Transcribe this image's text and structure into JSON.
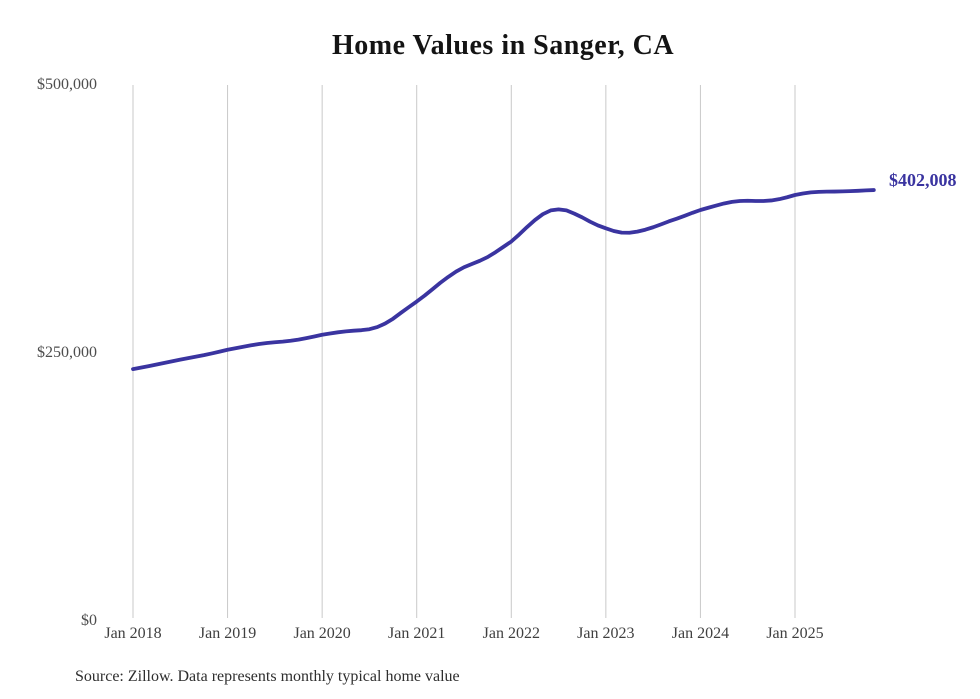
{
  "title": "Home Values in Sanger, CA",
  "source_note": "Source: Zillow. Data represents monthly typical home value",
  "colors": {
    "line": "#3a34a0",
    "end_label": "#3a34a0",
    "gridline": "#c9c9c9",
    "title_text": "#141414",
    "tick_text": "#3f3f3f",
    "source_text": "#2e2e2e",
    "background": "#ffffff"
  },
  "chart_data": {
    "type": "line",
    "title": "Home Values in Sanger, CA",
    "xlabel": "",
    "ylabel": "",
    "ylim": [
      0,
      500000
    ],
    "grid": "vertical-only",
    "legend": "none",
    "y_tick_values": [
      500000,
      250000,
      0
    ],
    "y_tick_labels": [
      "$500,000",
      "$250,000",
      "$0"
    ],
    "x_tick_labels": [
      "Jan 2018",
      "Jan 2019",
      "Jan 2020",
      "Jan 2021",
      "Jan 2022",
      "Jan 2023",
      "Jan 2024",
      "Jan 2025"
    ],
    "end_annotation": {
      "text": "$402,008",
      "value": 402008,
      "month": "2025-11"
    },
    "series": [
      {
        "name": "Typical home value (USD)",
        "months": [
          "2018-01",
          "2018-02",
          "2018-03",
          "2018-04",
          "2018-05",
          "2018-06",
          "2018-07",
          "2018-08",
          "2018-09",
          "2018-10",
          "2018-11",
          "2018-12",
          "2019-01",
          "2019-02",
          "2019-03",
          "2019-04",
          "2019-05",
          "2019-06",
          "2019-07",
          "2019-08",
          "2019-09",
          "2019-10",
          "2019-11",
          "2019-12",
          "2020-01",
          "2020-02",
          "2020-03",
          "2020-04",
          "2020-05",
          "2020-06",
          "2020-07",
          "2020-08",
          "2020-09",
          "2020-10",
          "2020-11",
          "2020-12",
          "2021-01",
          "2021-02",
          "2021-03",
          "2021-04",
          "2021-05",
          "2021-06",
          "2021-07",
          "2021-08",
          "2021-09",
          "2021-10",
          "2021-11",
          "2021-12",
          "2022-01",
          "2022-02",
          "2022-03",
          "2022-04",
          "2022-05",
          "2022-06",
          "2022-07",
          "2022-08",
          "2022-09",
          "2022-10",
          "2022-11",
          "2022-12",
          "2023-01",
          "2023-02",
          "2023-03",
          "2023-04",
          "2023-05",
          "2023-06",
          "2023-07",
          "2023-08",
          "2023-09",
          "2023-10",
          "2023-11",
          "2023-12",
          "2024-01",
          "2024-02",
          "2024-03",
          "2024-04",
          "2024-05",
          "2024-06",
          "2024-07",
          "2024-08",
          "2024-09",
          "2024-10",
          "2024-11",
          "2024-12",
          "2025-01",
          "2025-02",
          "2025-03",
          "2025-04",
          "2025-05",
          "2025-06",
          "2025-07",
          "2025-08",
          "2025-09",
          "2025-10",
          "2025-11"
        ],
        "values": [
          235000,
          236400,
          237800,
          239300,
          240800,
          242300,
          243800,
          245200,
          246600,
          248000,
          249600,
          251300,
          253000,
          254400,
          255800,
          257200,
          258400,
          259300,
          260000,
          260600,
          261400,
          262500,
          263900,
          265400,
          267000,
          268200,
          269300,
          270200,
          270800,
          271300,
          272200,
          274200,
          277500,
          282000,
          287500,
          292800,
          298000,
          303500,
          309500,
          315500,
          321000,
          326000,
          330000,
          333000,
          336000,
          339500,
          344000,
          349000,
          354000,
          360500,
          367500,
          374000,
          379500,
          383000,
          384000,
          383000,
          380000,
          376500,
          372500,
          369000,
          366300,
          363800,
          362300,
          362200,
          363200,
          365000,
          367300,
          370000,
          372800,
          375300,
          378000,
          380800,
          383400,
          385500,
          387500,
          389500,
          391000,
          391800,
          392000,
          391800,
          391800,
          392300,
          393500,
          395300,
          397400,
          398800,
          399800,
          400300,
          400500,
          400600,
          400800,
          401000,
          401300,
          401700,
          402008
        ]
      }
    ]
  }
}
